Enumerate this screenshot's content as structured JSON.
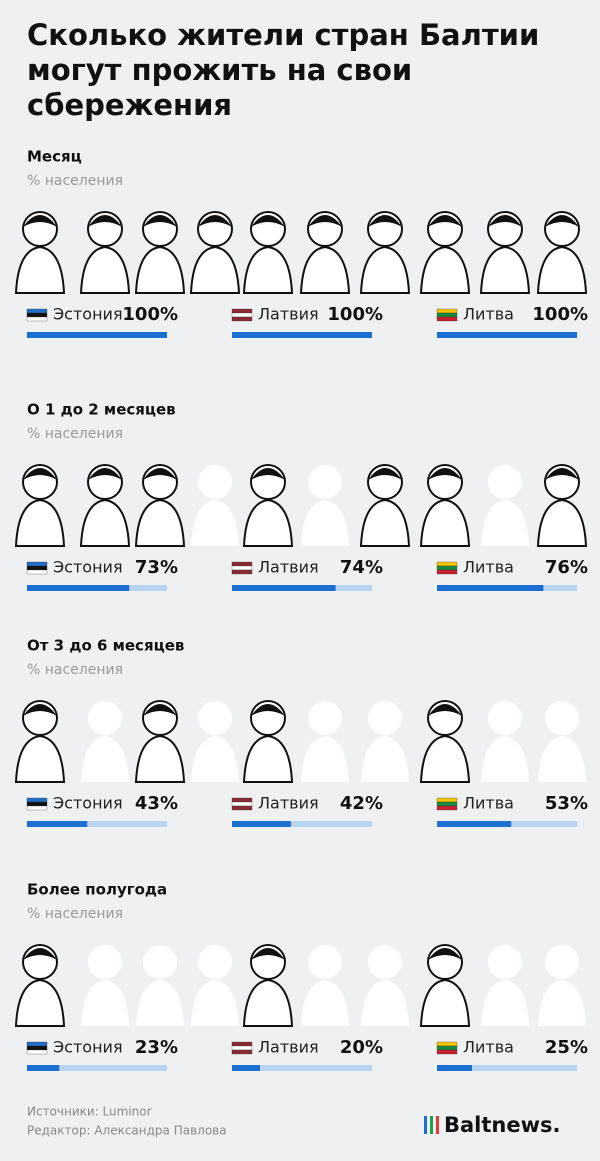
{
  "header": {
    "title": "Сколько жители стран Балтии могут прожить на свои сбережения"
  },
  "chart_data": [
    {
      "type": "bar",
      "title": "Месяц",
      "subtitle": "% населения",
      "categories": [
        "Эстония",
        "Латвия",
        "Литва"
      ],
      "values": [
        100,
        100,
        100
      ],
      "value_labels": [
        "100%",
        "100%",
        "100%"
      ],
      "color": "#1a6fd1",
      "xlim": [
        0,
        100
      ]
    },
    {
      "type": "bar",
      "title": "О 1 до 2 месяцев",
      "subtitle": "% населения",
      "categories": [
        "Эстония",
        "Латвия",
        "Литва"
      ],
      "values": [
        73,
        74,
        76
      ],
      "value_labels": [
        "73%",
        "74%",
        "76%"
      ],
      "color": "#1a6fd1",
      "xlim": [
        0,
        100
      ]
    },
    {
      "type": "bar",
      "title": "От 3 до 6 месяцев",
      "subtitle": "% населения",
      "categories": [
        "Эстония",
        "Латвия",
        "Литва"
      ],
      "values": [
        43,
        42,
        53
      ],
      "value_labels": [
        "43%",
        "42%",
        "53%"
      ],
      "color": "#1a6fd1",
      "xlim": [
        0,
        100
      ]
    },
    {
      "type": "bar",
      "title": "Более полугода",
      "subtitle": "% населения",
      "categories": [
        "Эстония",
        "Латвия",
        "Литва"
      ],
      "values": [
        23,
        20,
        25
      ],
      "value_labels": [
        "23%",
        "20%",
        "25%"
      ],
      "color": "#1a6fd1",
      "xlim": [
        0,
        100
      ]
    }
  ],
  "footer": {
    "sources": "Источники: Luminor",
    "editor": "Редактор: Александра Павлова",
    "logo": "Baltnews."
  }
}
